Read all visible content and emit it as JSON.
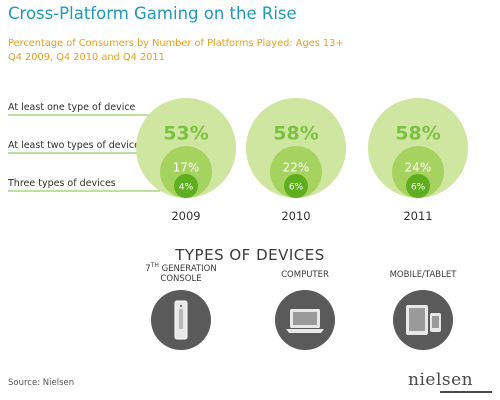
{
  "title": "Cross-Platform Gaming on the Rise",
  "subtitle_line1": "Percentage of Consumers by Number of Platforms Played: Ages 13+",
  "subtitle_line2": "Q4 2009, Q4 2010 and Q4 2011",
  "chart_data": {
    "type": "bubble",
    "title": "Cross-Platform Gaming on the Rise",
    "categories": [
      "2009",
      "2010",
      "2011"
    ],
    "series": [
      {
        "name": "At least one type of device",
        "values": [
          53,
          58,
          58
        ],
        "color": "#cfe6a0",
        "text_color": "#7cc242"
      },
      {
        "name": "At least two types of devices",
        "values": [
          17,
          22,
          24
        ],
        "color": "#a6d35f",
        "text_color": "#ffffff"
      },
      {
        "name": "Three types of devices",
        "values": [
          4,
          6,
          6
        ],
        "color": "#5fae1f",
        "text_color": "#ffffff"
      }
    ],
    "value_suffix": "%"
  },
  "types_heading": "TYPES OF DEVICES",
  "devices": [
    {
      "label_prefix": "7",
      "label_sup": "TH",
      "label_line1": " GENERATION",
      "label_line2": "CONSOLE",
      "icon": "console-icon"
    },
    {
      "label": "COMPUTER",
      "icon": "laptop-icon"
    },
    {
      "label": "MOBILE/TABLET",
      "icon": "tablet-phone-icon"
    }
  ],
  "source": "Source: Nielsen",
  "logo": "nielsen",
  "colors": {
    "title": "#1f9ab5",
    "subtitle": "#e6a11e",
    "icon_bg": "#5a5a5a"
  }
}
